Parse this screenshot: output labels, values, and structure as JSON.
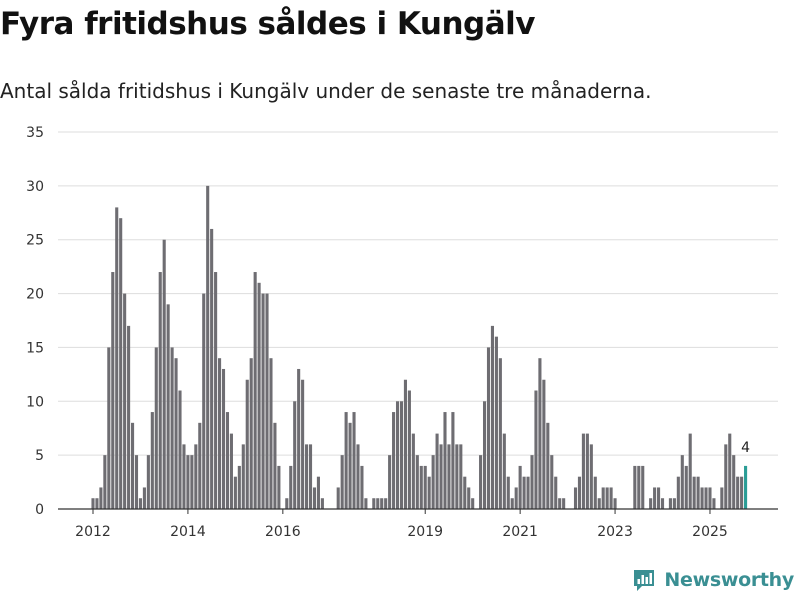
{
  "title": "Fyra fritidshus såldes i Kungälv",
  "subtitle": "Antal sålda fritidshus i Kungälv under de senaste tre månaderna.",
  "brand": {
    "name": "Newsworthy",
    "icon": "newsworthy-logo-icon"
  },
  "colors": {
    "bar": "#6e6d72",
    "highlight": "#2a9d96",
    "grid": "#dddddd",
    "axis": "#333333",
    "brand": "#3a8f93"
  },
  "chart_data": {
    "type": "bar",
    "title": "Fyra fritidshus såldes i Kungälv",
    "subtitle": "Antal sålda fritidshus i Kungälv under de senaste tre månaderna.",
    "xlabel": "",
    "ylabel": "",
    "ylim": [
      0,
      35
    ],
    "yticks": [
      0,
      5,
      10,
      15,
      20,
      25,
      30,
      35
    ],
    "grid": true,
    "x_unit": "months since 2012-01",
    "xticks": [
      {
        "label": "2012",
        "x": 0
      },
      {
        "label": "2014",
        "x": 24
      },
      {
        "label": "2016",
        "x": 48
      },
      {
        "label": "2019",
        "x": 84
      },
      {
        "label": "2021",
        "x": 108
      },
      {
        "label": "2023",
        "x": 132
      },
      {
        "label": "2025",
        "x": 156
      }
    ],
    "values": [
      1,
      1,
      2,
      5,
      15,
      22,
      28,
      27,
      20,
      17,
      8,
      5,
      1,
      2,
      5,
      9,
      15,
      22,
      25,
      19,
      15,
      14,
      11,
      6,
      5,
      5,
      6,
      8,
      20,
      30,
      26,
      22,
      14,
      13,
      9,
      7,
      3,
      4,
      6,
      12,
      14,
      22,
      21,
      20,
      20,
      14,
      8,
      4,
      0,
      1,
      4,
      10,
      13,
      12,
      6,
      6,
      2,
      3,
      1,
      0,
      0,
      0,
      2,
      5,
      9,
      8,
      9,
      6,
      4,
      1,
      0,
      1,
      1,
      1,
      1,
      5,
      9,
      10,
      10,
      12,
      11,
      7,
      5,
      4,
      4,
      3,
      5,
      7,
      6,
      9,
      6,
      9,
      6,
      6,
      3,
      2,
      1,
      0,
      5,
      10,
      15,
      17,
      16,
      14,
      7,
      3,
      1,
      2,
      4,
      3,
      3,
      5,
      11,
      14,
      12,
      8,
      5,
      3,
      1,
      1,
      0,
      0,
      2,
      3,
      7,
      7,
      6,
      3,
      1,
      2,
      2,
      2,
      1,
      0,
      0,
      0,
      0,
      4,
      4,
      4,
      0,
      1,
      2,
      2,
      1,
      0,
      1,
      1,
      3,
      5,
      4,
      7,
      3,
      3,
      2,
      2,
      2,
      1,
      0,
      2,
      6,
      7,
      5,
      3,
      3,
      4
    ],
    "highlight_last": true,
    "annotations": [
      {
        "label": "4",
        "target": "last_bar"
      }
    ]
  }
}
